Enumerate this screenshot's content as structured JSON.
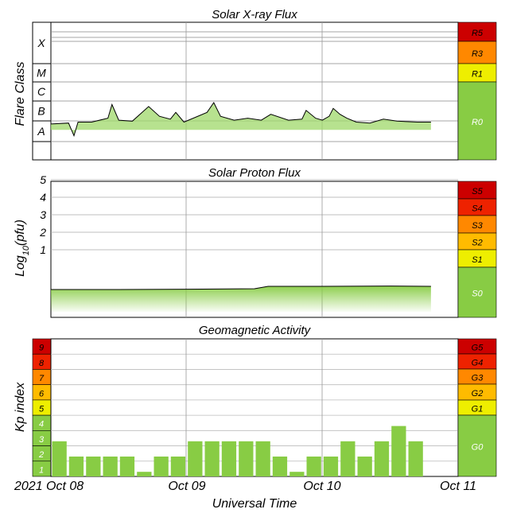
{
  "chart_data": [
    {
      "type": "line",
      "title": "Solar X-ray Flux",
      "ylabel": "Flare Class",
      "flare_classes": [
        "X",
        "M",
        "C",
        "B",
        "A"
      ],
      "scale_levels": [
        {
          "label": "R5",
          "color": "#cc0000"
        },
        {
          "label": "R3",
          "color": "#ff8800"
        },
        {
          "label": "R1",
          "color": "#eeee00"
        },
        {
          "label": "R0",
          "color": "#88cc44"
        }
      ],
      "x_days": [
        0,
        0.13,
        0.17,
        0.2,
        0.3,
        0.42,
        0.45,
        0.5,
        0.6,
        0.72,
        0.8,
        0.88,
        0.92,
        0.98,
        1.15,
        1.2,
        1.25,
        1.35,
        1.45,
        1.55,
        1.62,
        1.75,
        1.85,
        1.88,
        1.95,
        2.0,
        2.05,
        2.08,
        2.13,
        2.18,
        2.25,
        2.35,
        2.45,
        2.55,
        2.7,
        2.8
      ],
      "flux_log": [
        -7.1,
        -7.05,
        -7.7,
        -7.0,
        -7.0,
        -6.8,
        -6.1,
        -6.9,
        -6.95,
        -6.2,
        -6.7,
        -6.85,
        -6.5,
        -7.0,
        -6.5,
        -6.0,
        -6.7,
        -6.9,
        -6.8,
        -6.9,
        -6.6,
        -6.9,
        -6.85,
        -6.4,
        -6.8,
        -6.9,
        -6.7,
        -6.3,
        -6.6,
        -6.8,
        -7.0,
        -7.05,
        -6.85,
        -6.95,
        -7.0,
        -7.0
      ]
    },
    {
      "type": "line",
      "title": "Solar Proton Flux",
      "ylabel": "Log10(pfu)",
      "yticks": [
        "5",
        "4",
        "3",
        "2",
        "1"
      ],
      "scale_levels": [
        {
          "label": "S5",
          "color": "#cc0000"
        },
        {
          "label": "S4",
          "color": "#ee2200"
        },
        {
          "label": "S3",
          "color": "#ff8800"
        },
        {
          "label": "S2",
          "color": "#ffbb00"
        },
        {
          "label": "S1",
          "color": "#eeee00"
        },
        {
          "label": "S0",
          "color": "#88cc44"
        }
      ],
      "x_days": [
        0,
        0.5,
        1.0,
        1.5,
        1.6,
        2.0,
        2.5,
        2.8
      ],
      "log_pfu": [
        -0.2,
        -0.2,
        -0.18,
        -0.15,
        0.0,
        0.0,
        0.02,
        0.0
      ]
    },
    {
      "type": "bar",
      "title": "Geomagnetic Activity",
      "ylabel": "Kp index",
      "kp_levels": [
        "9",
        "8",
        "7",
        "6",
        "5",
        "4",
        "3",
        "2",
        "1"
      ],
      "kp_colors": [
        "#cc0000",
        "#ee2200",
        "#ff8800",
        "#ffbb00",
        "#eeee00",
        "#88cc44",
        "#88cc44",
        "#88cc44",
        "#88cc44"
      ],
      "scale_levels": [
        {
          "label": "G5",
          "color": "#cc0000"
        },
        {
          "label": "G4",
          "color": "#ee2200"
        },
        {
          "label": "G3",
          "color": "#ff8800"
        },
        {
          "label": "G2",
          "color": "#ffbb00"
        },
        {
          "label": "G1",
          "color": "#eeee00"
        },
        {
          "label": "G0",
          "color": "#88cc44"
        }
      ],
      "kp_values": [
        2.3,
        1.3,
        1.3,
        1.3,
        1.3,
        0.3,
        1.3,
        1.3,
        2.3,
        2.3,
        2.3,
        2.3,
        2.3,
        1.3,
        0.3,
        1.3,
        1.3,
        2.3,
        1.3,
        2.3,
        3.3,
        2.3
      ],
      "bar_color": "#88cc44"
    }
  ],
  "x_axis": {
    "label": "Universal Time",
    "ticks": [
      "2021 Oct 08",
      "Oct 09",
      "Oct 10",
      "Oct 11"
    ]
  }
}
